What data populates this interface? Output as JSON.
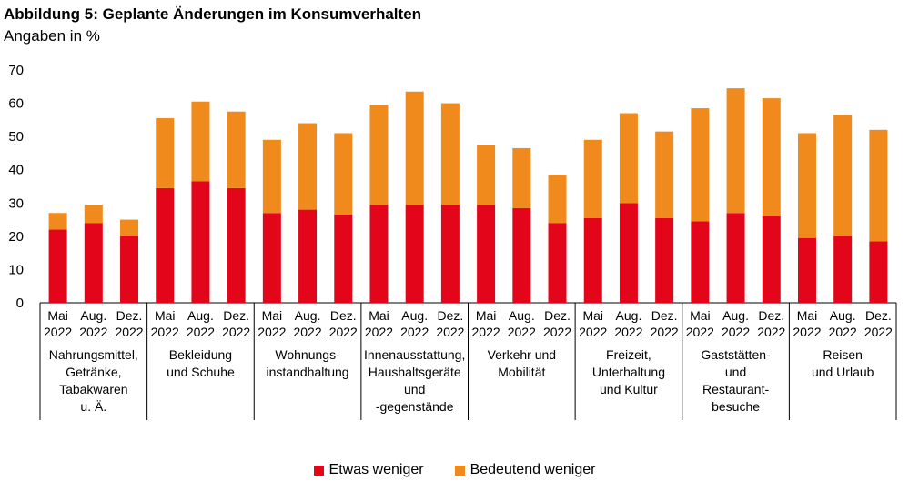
{
  "title": "Abbildung 5: Geplante Änderungen im Konsumverhalten",
  "subtitle": "Angaben in %",
  "colors": {
    "etwas": "#e3061b",
    "bedeutend": "#f08a1c"
  },
  "chart_data": {
    "type": "bar",
    "stacked": true,
    "ylim": [
      0,
      70
    ],
    "yticks": [
      0,
      10,
      20,
      30,
      40,
      50,
      60,
      70
    ],
    "grid": false,
    "legend_position": "bottom",
    "period_labels": [
      [
        "Mai",
        "2022"
      ],
      [
        "Aug.",
        "2022"
      ],
      [
        "Dez.",
        "2022"
      ]
    ],
    "groups": [
      {
        "label_lines": [
          "Nahrungsmittel,",
          "Getränke,",
          "Tabakwaren",
          "u. Ä."
        ],
        "etwas": [
          22,
          24,
          20
        ],
        "bedeutend": [
          5,
          5.5,
          5
        ]
      },
      {
        "label_lines": [
          "Bekleidung",
          "und Schuhe"
        ],
        "etwas": [
          34.5,
          36.5,
          34.5
        ],
        "bedeutend": [
          21,
          24,
          23
        ]
      },
      {
        "label_lines": [
          "Wohnungs-",
          "instandhaltung"
        ],
        "etwas": [
          27,
          28,
          26.5
        ],
        "bedeutend": [
          22,
          26,
          24.5
        ]
      },
      {
        "label_lines": [
          "Innenausstattung,",
          "Haushaltsgeräte",
          "und",
          "-gegenstände"
        ],
        "etwas": [
          29.5,
          29.5,
          29.5
        ],
        "bedeutend": [
          30,
          34,
          30.5
        ]
      },
      {
        "label_lines": [
          "Verkehr und",
          "Mobilität"
        ],
        "etwas": [
          29.5,
          28.5,
          24
        ],
        "bedeutend": [
          18,
          18,
          14.5
        ]
      },
      {
        "label_lines": [
          "Freizeit,",
          "Unterhaltung",
          "und Kultur"
        ],
        "etwas": [
          25.5,
          30,
          25.5
        ],
        "bedeutend": [
          23.5,
          27,
          26
        ]
      },
      {
        "label_lines": [
          "Gaststätten-",
          "und",
          "Restaurant-",
          "besuche"
        ],
        "etwas": [
          24.5,
          27,
          26
        ],
        "bedeutend": [
          34,
          37.5,
          35.5
        ]
      },
      {
        "label_lines": [
          "Reisen",
          "und Urlaub"
        ],
        "etwas": [
          19.5,
          20,
          18.5
        ],
        "bedeutend": [
          31.5,
          36.5,
          33.5
        ]
      }
    ],
    "series": [
      {
        "name": "Etwas weniger"
      },
      {
        "name": "Bedeutend weniger"
      }
    ]
  }
}
